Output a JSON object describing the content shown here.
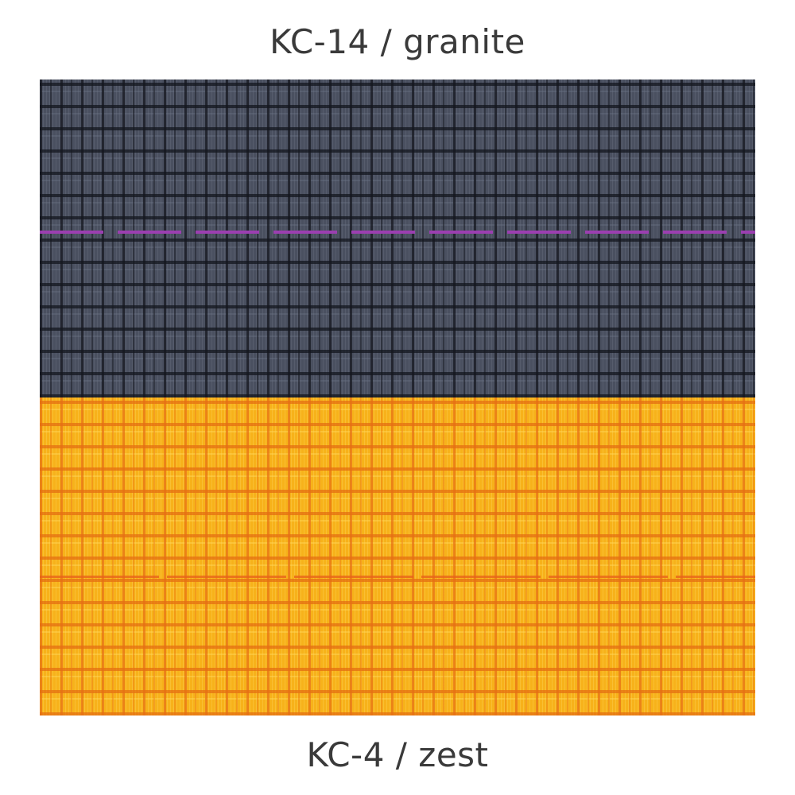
{
  "swatches": [
    {
      "label": "KC-14 / granite",
      "color": "#4a5060",
      "stitch_color": "#9b3fb0"
    },
    {
      "label": "KC-4 / zest",
      "color": "#f7b21a",
      "stitch_color": "#e8641a"
    }
  ]
}
